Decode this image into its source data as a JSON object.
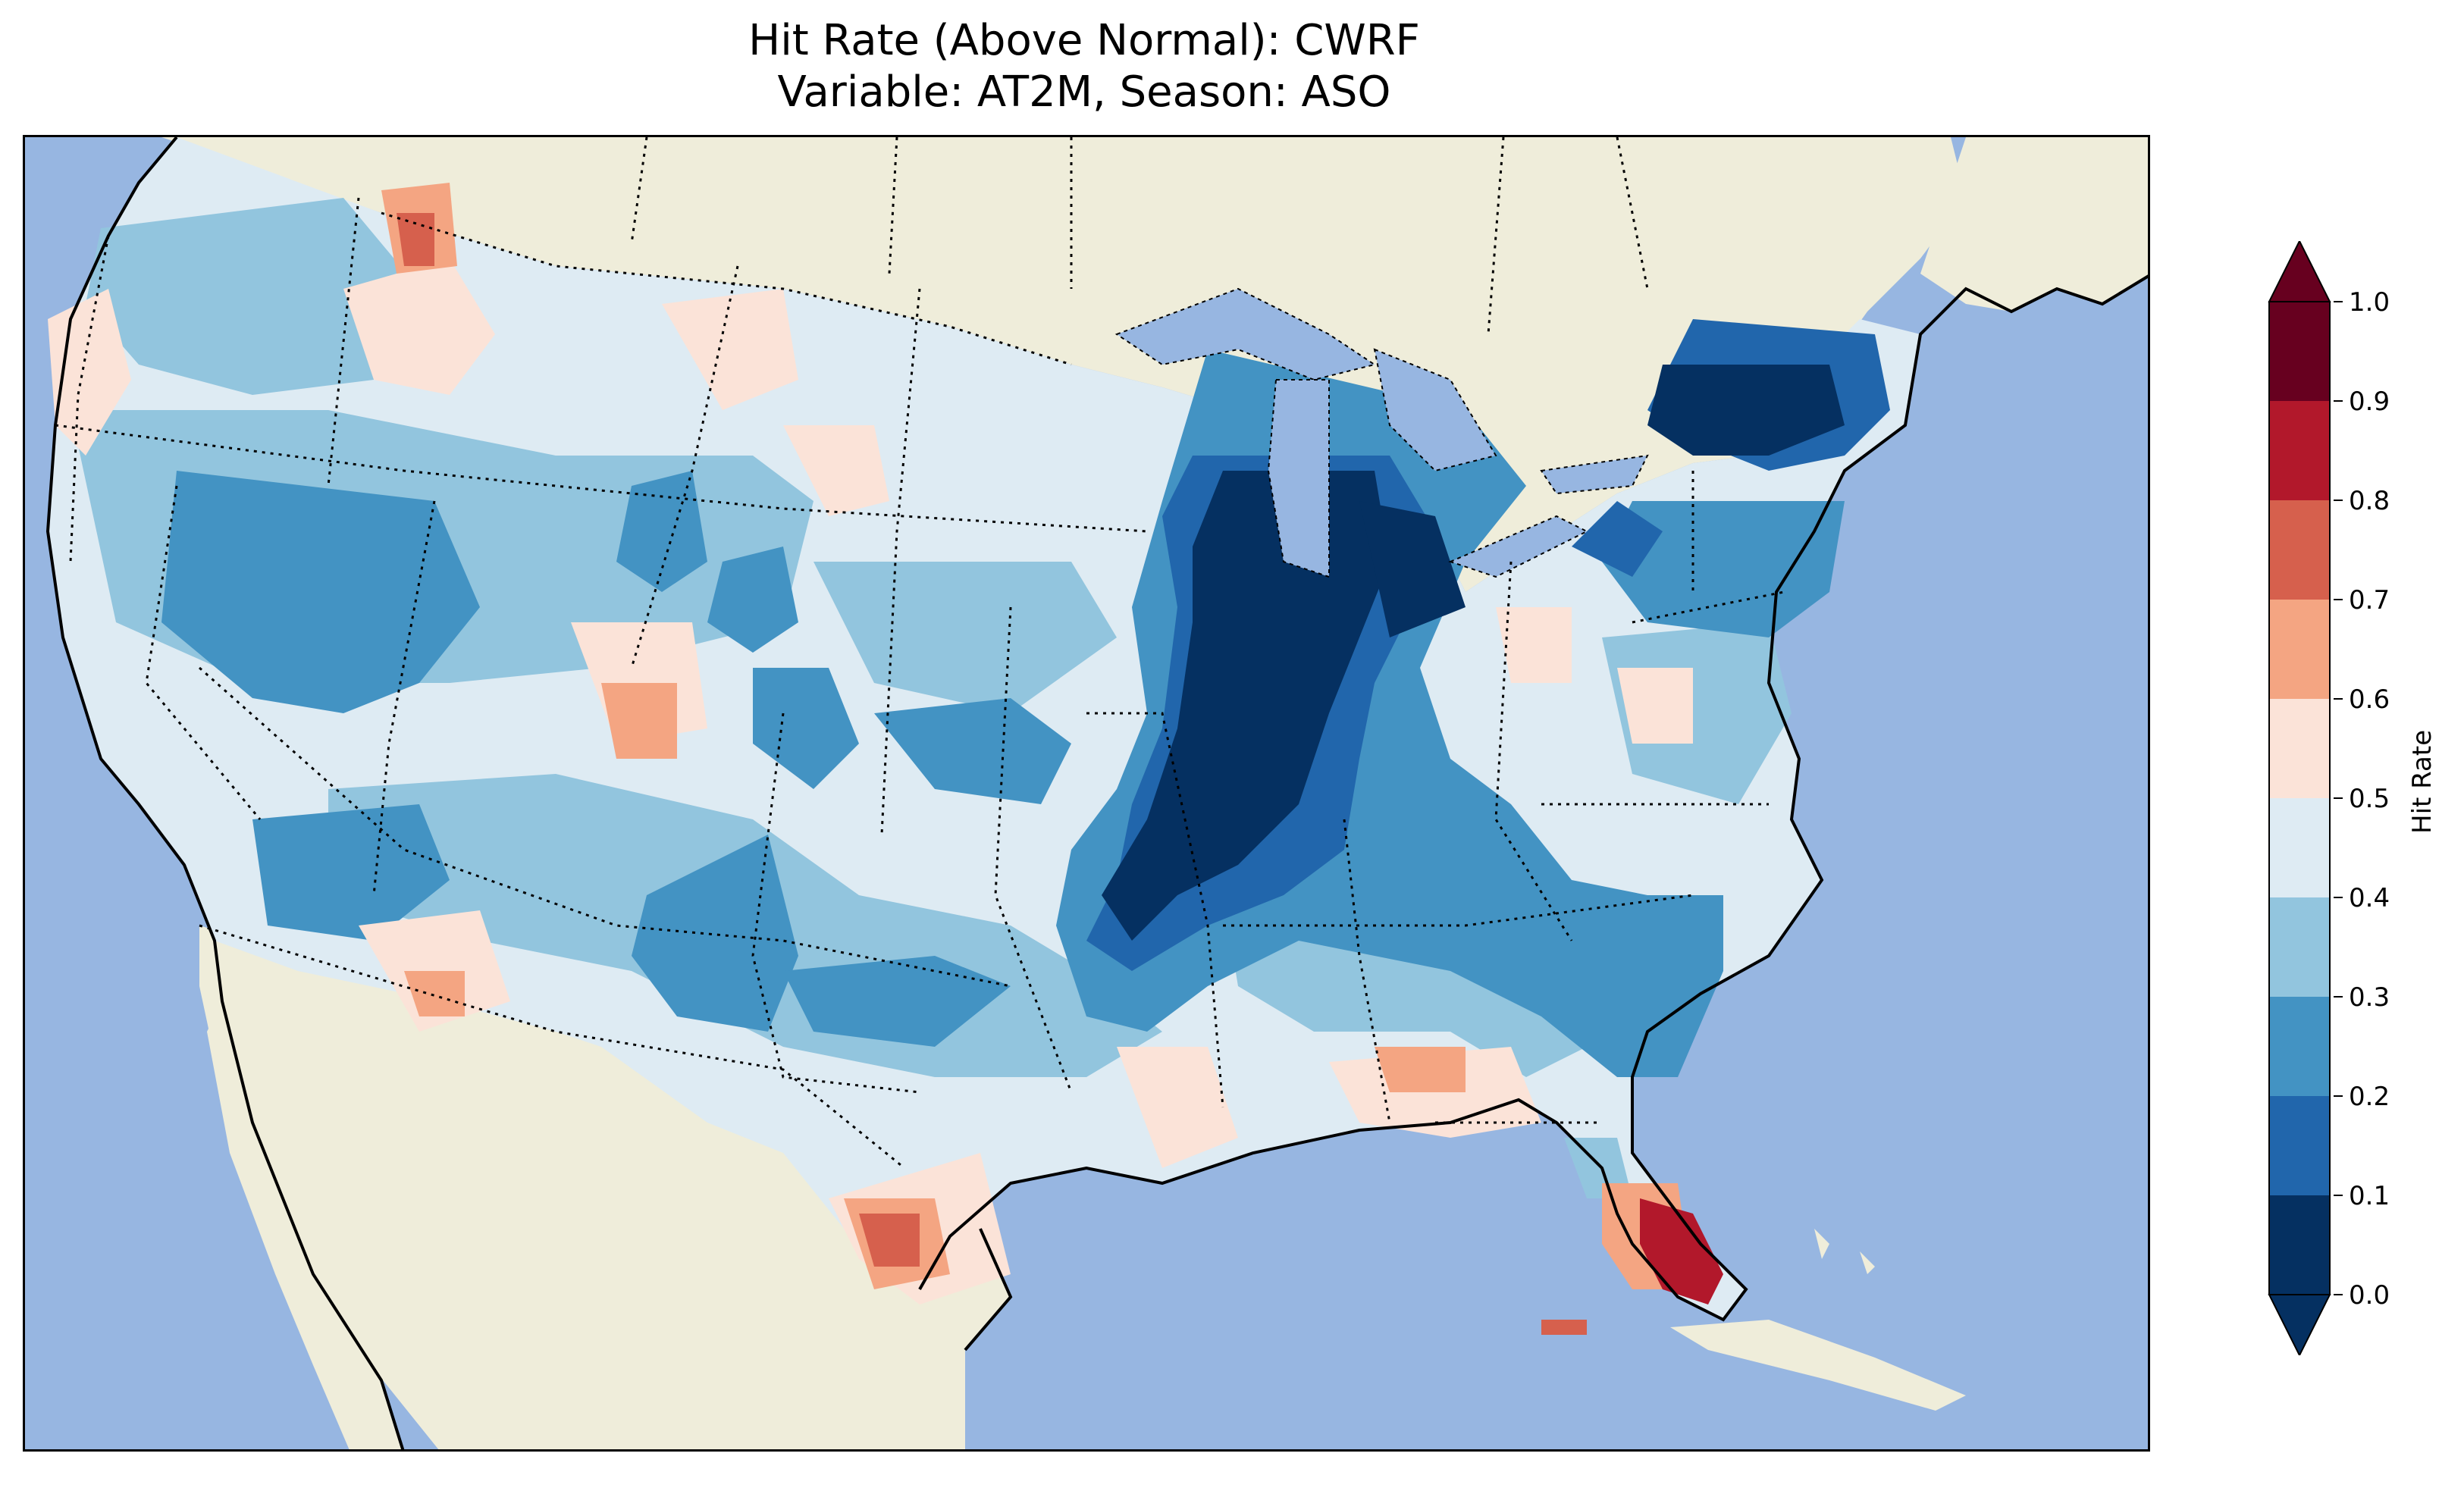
{
  "title": {
    "line1": "Hit Rate (Above Normal): CWRF",
    "line2": "Variable: AT2M, Season: ASO"
  },
  "colors": {
    "ocean": "#97b6e1",
    "land": "#efedda",
    "border": "#000000"
  },
  "colorbar": {
    "label": "Hit Rate",
    "ticks": [
      "0.0",
      "0.1",
      "0.2",
      "0.3",
      "0.4",
      "0.5",
      "0.6",
      "0.7",
      "0.8",
      "0.9",
      "1.0"
    ],
    "bins": [
      {
        "range": [
          0.0,
          0.1
        ],
        "color": "#053061"
      },
      {
        "range": [
          0.1,
          0.2
        ],
        "color": "#2166ac"
      },
      {
        "range": [
          0.2,
          0.3
        ],
        "color": "#4393c3"
      },
      {
        "range": [
          0.3,
          0.4
        ],
        "color": "#92c5de"
      },
      {
        "range": [
          0.4,
          0.5
        ],
        "color": "#deebf3"
      },
      {
        "range": [
          0.5,
          0.6
        ],
        "color": "#fbe3d8"
      },
      {
        "range": [
          0.6,
          0.7
        ],
        "color": "#f4a582"
      },
      {
        "range": [
          0.7,
          0.8
        ],
        "color": "#d6604d"
      },
      {
        "range": [
          0.8,
          0.9
        ],
        "color": "#b2182b"
      },
      {
        "range": [
          0.9,
          1.0
        ],
        "color": "#67001f"
      }
    ],
    "extend": "both",
    "under_color": "#053061",
    "over_color": "#67001f"
  },
  "map": {
    "region": "Contiguous United States",
    "variable": "AT2M",
    "season": "ASO",
    "model": "CWRF",
    "features": [
      "coastlines",
      "state borders",
      "country borders",
      "lakes"
    ]
  }
}
